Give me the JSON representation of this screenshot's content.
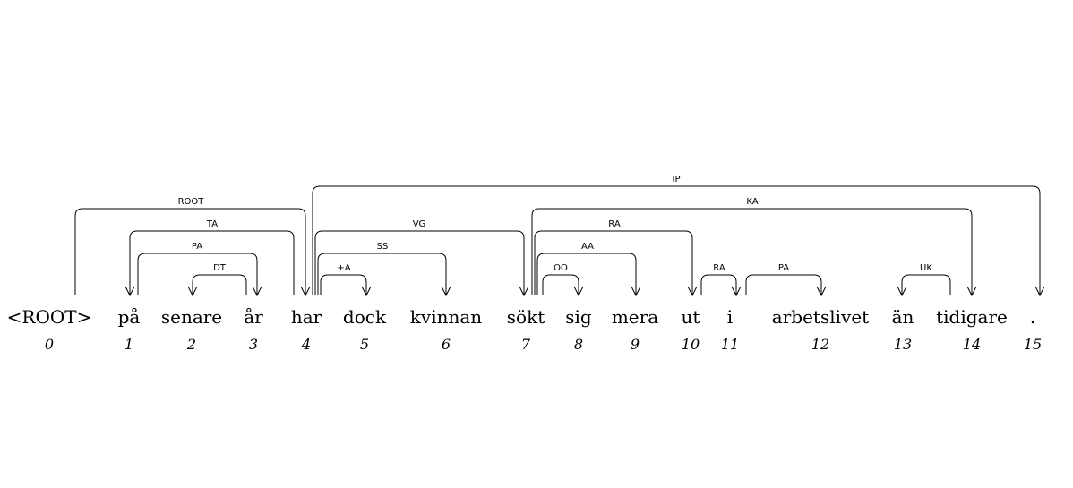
{
  "tokens": [
    {
      "index": "0",
      "word": "<ROOT>"
    },
    {
      "index": "1",
      "word": "på"
    },
    {
      "index": "2",
      "word": "senare"
    },
    {
      "index": "3",
      "word": "år"
    },
    {
      "index": "4",
      "word": "har"
    },
    {
      "index": "5",
      "word": "dock"
    },
    {
      "index": "6",
      "word": "kvinnan"
    },
    {
      "index": "7",
      "word": "sökt"
    },
    {
      "index": "8",
      "word": "sig"
    },
    {
      "index": "9",
      "word": "mera"
    },
    {
      "index": "10",
      "word": "ut"
    },
    {
      "index": "11",
      "word": "i"
    },
    {
      "index": "12",
      "word": "arbetslivet"
    },
    {
      "index": "13",
      "word": "än"
    },
    {
      "index": "14",
      "word": "tidigare"
    },
    {
      "index": "15",
      "word": "."
    }
  ],
  "arcs": [
    {
      "head": 0,
      "dep": 4,
      "label": "ROOT"
    },
    {
      "head": 4,
      "dep": 1,
      "label": "TA"
    },
    {
      "head": 1,
      "dep": 3,
      "label": "PA"
    },
    {
      "head": 3,
      "dep": 2,
      "label": "DT"
    },
    {
      "head": 4,
      "dep": 15,
      "label": "IP"
    },
    {
      "head": 4,
      "dep": 7,
      "label": "VG"
    },
    {
      "head": 4,
      "dep": 6,
      "label": "SS"
    },
    {
      "head": 4,
      "dep": 5,
      "label": "+A"
    },
    {
      "head": 7,
      "dep": 14,
      "label": "KA"
    },
    {
      "head": 7,
      "dep": 10,
      "label": "RA"
    },
    {
      "head": 7,
      "dep": 9,
      "label": "AA"
    },
    {
      "head": 7,
      "dep": 8,
      "label": "OO"
    },
    {
      "head": 10,
      "dep": 11,
      "label": "RA"
    },
    {
      "head": 11,
      "dep": 12,
      "label": "PA"
    },
    {
      "head": 14,
      "dep": 13,
      "label": "UK"
    }
  ]
}
